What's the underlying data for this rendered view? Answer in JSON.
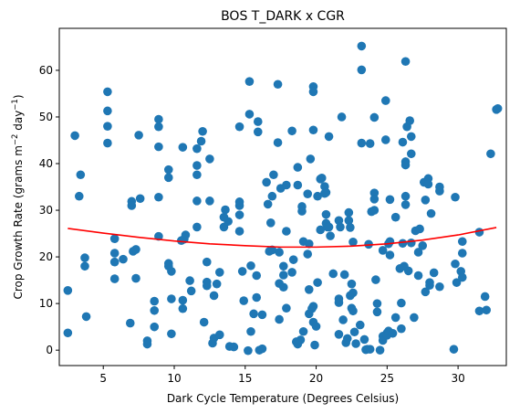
{
  "chart_data": {
    "type": "scatter",
    "title": "BOS T_DARK x CGR",
    "xlabel": "Dark Cycle Temperature (Degrees Celsius)",
    "ylabel_parts": {
      "prefix": "Crop Growth Rate (grams m",
      "exp1": "−2",
      "middle": " day",
      "exp2": "−1",
      "suffix": ")"
    },
    "xlim": [
      1.9,
      33.4
    ],
    "ylim": [
      -3.3,
      69.0
    ],
    "xticks": [
      5,
      10,
      15,
      20,
      25,
      30
    ],
    "yticks": [
      0,
      10,
      20,
      30,
      40,
      50,
      60
    ],
    "grid": false,
    "colors": {
      "points": "#1f77b4",
      "fit": "#ff0000"
    },
    "fit_curve": {
      "x": [
        2.5,
        5,
        7.5,
        10,
        12.5,
        15,
        17.5,
        20,
        22.5,
        25,
        27.5,
        30,
        32.7
      ],
      "y": [
        26.1,
        25.1,
        24.2,
        23.4,
        22.8,
        22.4,
        22.1,
        22.1,
        22.3,
        22.8,
        23.6,
        24.7,
        26.3
      ]
    },
    "points": [
      [
        2.5,
        3.7
      ],
      [
        2.5,
        12.8
      ],
      [
        3.0,
        46.0
      ],
      [
        3.3,
        33.0
      ],
      [
        3.4,
        37.6
      ],
      [
        3.7,
        18.0
      ],
      [
        3.7,
        19.8
      ],
      [
        3.8,
        7.2
      ],
      [
        5.3,
        55.4
      ],
      [
        5.3,
        51.3
      ],
      [
        5.3,
        48.0
      ],
      [
        5.3,
        44.4
      ],
      [
        5.8,
        20.8
      ],
      [
        5.8,
        18.9
      ],
      [
        5.8,
        15.3
      ],
      [
        5.8,
        23.9
      ],
      [
        6.4,
        19.5
      ],
      [
        6.9,
        5.8
      ],
      [
        7.0,
        31.9
      ],
      [
        7.0,
        31.0
      ],
      [
        7.1,
        21.2
      ],
      [
        7.3,
        21.6
      ],
      [
        7.3,
        15.4
      ],
      [
        7.5,
        46.1
      ],
      [
        7.6,
        32.5
      ],
      [
        8.1,
        1.3
      ],
      [
        8.1,
        2.0
      ],
      [
        8.6,
        5.0
      ],
      [
        8.6,
        8.5
      ],
      [
        8.6,
        10.5
      ],
      [
        8.9,
        43.6
      ],
      [
        8.9,
        47.9
      ],
      [
        8.9,
        49.5
      ],
      [
        8.9,
        32.8
      ],
      [
        8.9,
        24.4
      ],
      [
        9.6,
        37.0
      ],
      [
        9.6,
        38.7
      ],
      [
        9.6,
        18.6
      ],
      [
        9.6,
        18.0
      ],
      [
        9.8,
        3.5
      ],
      [
        9.8,
        11.0
      ],
      [
        9.8,
        16.9
      ],
      [
        10.5,
        23.5
      ],
      [
        10.6,
        10.7
      ],
      [
        10.6,
        8.9
      ],
      [
        10.6,
        43.5
      ],
      [
        10.7,
        23.8
      ],
      [
        10.8,
        24.7
      ],
      [
        11.1,
        14.9
      ],
      [
        11.2,
        12.7
      ],
      [
        11.6,
        43.2
      ],
      [
        11.6,
        39.6
      ],
      [
        11.6,
        37.6
      ],
      [
        11.6,
        32.0
      ],
      [
        11.6,
        26.4
      ],
      [
        11.9,
        44.8
      ],
      [
        12.0,
        46.9
      ],
      [
        12.1,
        6.0
      ],
      [
        12.3,
        13.8
      ],
      [
        12.3,
        14.6
      ],
      [
        12.3,
        18.9
      ],
      [
        12.5,
        32.0
      ],
      [
        12.5,
        41.0
      ],
      [
        12.7,
        1.5
      ],
      [
        12.8,
        2.6
      ],
      [
        12.8,
        11.7
      ],
      [
        13.0,
        14.2
      ],
      [
        13.2,
        3.3
      ],
      [
        13.2,
        16.7
      ],
      [
        13.5,
        28.5
      ],
      [
        13.5,
        26.4
      ],
      [
        13.6,
        30.1
      ],
      [
        13.8,
        27.6
      ],
      [
        13.9,
        0.8
      ],
      [
        14.2,
        0.7
      ],
      [
        14.6,
        31.8
      ],
      [
        14.6,
        31.0
      ],
      [
        14.6,
        29.0
      ],
      [
        14.6,
        25.5
      ],
      [
        14.6,
        47.9
      ],
      [
        14.8,
        16.9
      ],
      [
        14.9,
        10.6
      ],
      [
        15.2,
        -0.1
      ],
      [
        15.3,
        57.6
      ],
      [
        15.3,
        50.6
      ],
      [
        15.4,
        4.0
      ],
      [
        15.4,
        18.1
      ],
      [
        15.6,
        7.8
      ],
      [
        15.8,
        16.0
      ],
      [
        15.8,
        11.3
      ],
      [
        15.9,
        49.0
      ],
      [
        15.9,
        46.8
      ],
      [
        16.0,
        0.0
      ],
      [
        16.2,
        0.3
      ],
      [
        16.2,
        7.6
      ],
      [
        16.5,
        36.0
      ],
      [
        16.6,
        31.3
      ],
      [
        16.7,
        21.2
      ],
      [
        16.8,
        27.3
      ],
      [
        16.9,
        21.5
      ],
      [
        16.9,
        33.0
      ],
      [
        17.0,
        37.6
      ],
      [
        17.3,
        44.5
      ],
      [
        17.3,
        57.0
      ],
      [
        17.4,
        14.3
      ],
      [
        17.4,
        6.6
      ],
      [
        17.4,
        21.0
      ],
      [
        17.5,
        34.7
      ],
      [
        17.7,
        16.1
      ],
      [
        17.7,
        18.0
      ],
      [
        17.7,
        13.5
      ],
      [
        17.9,
        25.5
      ],
      [
        17.9,
        9.0
      ],
      [
        17.9,
        35.4
      ],
      [
        18.3,
        47.0
      ],
      [
        18.3,
        16.7
      ],
      [
        18.4,
        19.4
      ],
      [
        18.6,
        1.8
      ],
      [
        18.7,
        39.2
      ],
      [
        18.7,
        35.4
      ],
      [
        18.7,
        1.3
      ],
      [
        18.9,
        2.2
      ],
      [
        19.0,
        30.8
      ],
      [
        19.0,
        29.8
      ],
      [
        19.1,
        4.0
      ],
      [
        19.1,
        23.3
      ],
      [
        19.4,
        33.5
      ],
      [
        19.4,
        20.6
      ],
      [
        19.5,
        22.8
      ],
      [
        19.5,
        13.0
      ],
      [
        19.5,
        7.8
      ],
      [
        19.6,
        41.0
      ],
      [
        19.7,
        8.9
      ],
      [
        19.8,
        56.5
      ],
      [
        19.8,
        55.4
      ],
      [
        19.8,
        47.2
      ],
      [
        19.8,
        6.0
      ],
      [
        19.8,
        9.4
      ],
      [
        19.9,
        1.1
      ],
      [
        20.0,
        5.1
      ],
      [
        20.1,
        33.0
      ],
      [
        20.1,
        14.5
      ],
      [
        20.3,
        36.7
      ],
      [
        20.3,
        25.8
      ],
      [
        20.4,
        36.9
      ],
      [
        20.6,
        35.1
      ],
      [
        20.6,
        33.6
      ],
      [
        20.7,
        33.8
      ],
      [
        20.7,
        27.2
      ],
      [
        20.7,
        29.1
      ],
      [
        20.8,
        26.4
      ],
      [
        20.9,
        45.8
      ],
      [
        20.9,
        26.4
      ],
      [
        21.0,
        24.5
      ],
      [
        21.2,
        16.4
      ],
      [
        21.6,
        11.0
      ],
      [
        21.6,
        10.2
      ],
      [
        21.6,
        3.4
      ],
      [
        21.6,
        27.8
      ],
      [
        21.7,
        26.4
      ],
      [
        21.8,
        50.0
      ],
      [
        21.9,
        6.5
      ],
      [
        22.0,
        16.2
      ],
      [
        22.1,
        1.6
      ],
      [
        22.2,
        2.5
      ],
      [
        22.3,
        29.5
      ],
      [
        22.3,
        27.8
      ],
      [
        22.4,
        11.7
      ],
      [
        22.4,
        26.3
      ],
      [
        22.5,
        9.0
      ],
      [
        22.5,
        14.2
      ],
      [
        22.6,
        12.3
      ],
      [
        22.6,
        8.4
      ],
      [
        22.6,
        23.2
      ],
      [
        22.7,
        3.9
      ],
      [
        22.8,
        1.4
      ],
      [
        23.1,
        5.4
      ],
      [
        23.2,
        65.2
      ],
      [
        23.2,
        60.1
      ],
      [
        23.2,
        44.4
      ],
      [
        23.4,
        2.3
      ],
      [
        23.5,
        0.1
      ],
      [
        23.6,
        0.2
      ],
      [
        23.7,
        22.7
      ],
      [
        23.8,
        0.2
      ],
      [
        23.8,
        44.3
      ],
      [
        23.9,
        29.7
      ],
      [
        24.1,
        49.9
      ],
      [
        24.1,
        33.7
      ],
      [
        24.1,
        32.4
      ],
      [
        24.1,
        30.0
      ],
      [
        24.2,
        15.1
      ],
      [
        24.3,
        10.0
      ],
      [
        24.3,
        8.2
      ],
      [
        24.5,
        0.0
      ],
      [
        24.7,
        2.1
      ],
      [
        24.7,
        3.0
      ],
      [
        24.7,
        21.4
      ],
      [
        24.9,
        53.5
      ],
      [
        24.9,
        45.1
      ],
      [
        25.0,
        3.7
      ],
      [
        25.0,
        3.2
      ],
      [
        25.1,
        4.1
      ],
      [
        25.1,
        22.8
      ],
      [
        25.2,
        32.3
      ],
      [
        25.2,
        23.3
      ],
      [
        25.2,
        20.4
      ],
      [
        25.4,
        3.6
      ],
      [
        25.6,
        28.5
      ],
      [
        25.6,
        7.0
      ],
      [
        25.9,
        17.5
      ],
      [
        26.0,
        4.6
      ],
      [
        26.0,
        10.1
      ],
      [
        26.1,
        44.6
      ],
      [
        26.1,
        22.9
      ],
      [
        26.2,
        18.0
      ],
      [
        26.3,
        61.9
      ],
      [
        26.3,
        40.4
      ],
      [
        26.3,
        39.7
      ],
      [
        26.3,
        33.0
      ],
      [
        26.3,
        31.2
      ],
      [
        26.4,
        47.9
      ],
      [
        26.5,
        17.0
      ],
      [
        26.6,
        49.2
      ],
      [
        26.7,
        45.8
      ],
      [
        26.7,
        42.1
      ],
      [
        26.7,
        23.0
      ],
      [
        26.9,
        7.0
      ],
      [
        27.0,
        25.6
      ],
      [
        27.2,
        21.0
      ],
      [
        27.2,
        16.0
      ],
      [
        27.3,
        26.0
      ],
      [
        27.5,
        22.4
      ],
      [
        27.6,
        36.0
      ],
      [
        27.7,
        12.5
      ],
      [
        27.7,
        32.2
      ],
      [
        27.9,
        36.8
      ],
      [
        27.9,
        35.6
      ],
      [
        28.0,
        14.5
      ],
      [
        28.0,
        13.9
      ],
      [
        28.1,
        29.3
      ],
      [
        28.3,
        16.6
      ],
      [
        28.7,
        35.0
      ],
      [
        28.7,
        34.1
      ],
      [
        28.7,
        13.6
      ],
      [
        29.7,
        0.2
      ],
      [
        29.8,
        18.5
      ],
      [
        29.8,
        32.8
      ],
      [
        29.9,
        14.5
      ],
      [
        30.2,
        16.9
      ],
      [
        30.3,
        15.6
      ],
      [
        30.3,
        20.8
      ],
      [
        30.3,
        23.3
      ],
      [
        31.5,
        25.3
      ],
      [
        31.5,
        8.4
      ],
      [
        31.9,
        11.5
      ],
      [
        32.0,
        8.6
      ],
      [
        32.3,
        42.1
      ],
      [
        32.7,
        51.6
      ],
      [
        32.8,
        51.8
      ]
    ]
  }
}
